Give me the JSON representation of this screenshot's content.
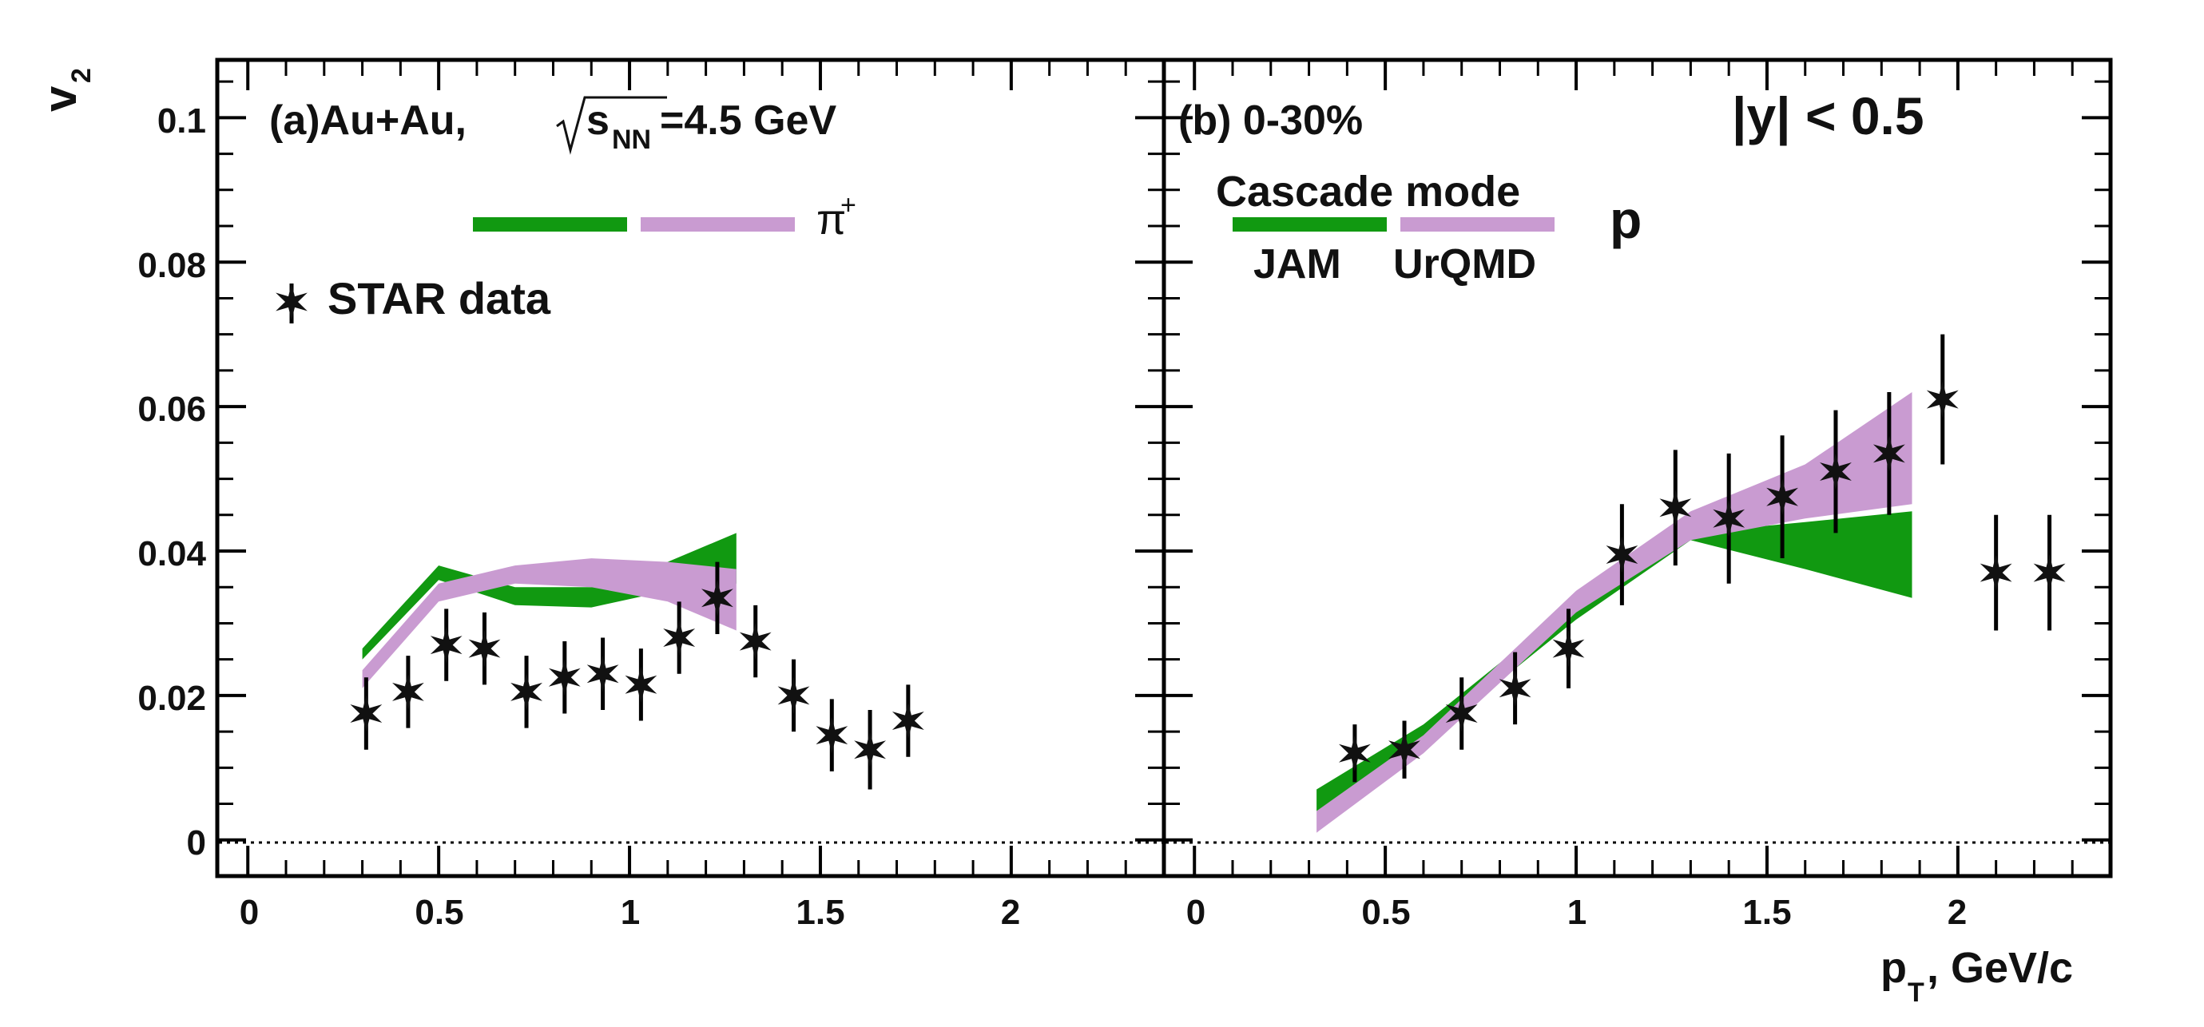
{
  "chart_data": [
    {
      "type": "scatter",
      "panel_label": "(a)Au+Au,",
      "energy_label": {
        "prefix": "s",
        "subscript": "NN",
        "suffix": "=4.5 GeV"
      },
      "particle_label": "π",
      "particle_charge": "+",
      "ylabel": "v",
      "ylabel_sub": "2",
      "xlim": [
        -0.08,
        2.4
      ],
      "ylim": [
        -0.005,
        0.108
      ],
      "x_ticks": [
        "0",
        "0.5",
        "1",
        "1.5",
        "2"
      ],
      "y_ticks": [
        "0",
        "0.02",
        "0.04",
        "0.06",
        "0.08",
        "0.1"
      ],
      "legend": {
        "marker_label": "STAR data"
      },
      "series": [
        {
          "name": "STAR data",
          "x": [
            0.31,
            0.42,
            0.52,
            0.62,
            0.73,
            0.83,
            0.93,
            1.03,
            1.13,
            1.23,
            1.33,
            1.43,
            1.53,
            1.63,
            1.73
          ],
          "y": [
            0.0175,
            0.0205,
            0.027,
            0.0265,
            0.0205,
            0.0225,
            0.023,
            0.0215,
            0.028,
            0.0335,
            0.0275,
            0.02,
            0.0145,
            0.0125,
            0.0165
          ],
          "err": [
            0.005,
            0.005,
            0.005,
            0.005,
            0.005,
            0.005,
            0.005,
            0.005,
            0.005,
            0.005,
            0.005,
            0.005,
            0.005,
            0.0055,
            0.005
          ]
        },
        {
          "name": "JAM",
          "color": "#119911",
          "x": [
            0.3,
            0.5,
            0.7,
            0.9,
            1.1,
            1.28
          ],
          "y_low": [
            0.025,
            0.036,
            0.0325,
            0.0322,
            0.0345,
            0.0355
          ],
          "y_high": [
            0.0265,
            0.038,
            0.035,
            0.035,
            0.0385,
            0.0425
          ]
        },
        {
          "name": "UrQMD",
          "color": "#c99bd1",
          "x": [
            0.3,
            0.5,
            0.7,
            0.9,
            1.1,
            1.28
          ],
          "y_low": [
            0.021,
            0.033,
            0.0355,
            0.035,
            0.033,
            0.029
          ],
          "y_high": [
            0.0235,
            0.0355,
            0.038,
            0.039,
            0.0385,
            0.0375
          ]
        }
      ]
    },
    {
      "type": "scatter",
      "panel_label": "(b) 0-30%",
      "rapidity_label": "|y| < 0.5",
      "particle_label": "p",
      "xlabel": "p",
      "xlabel_sub": "T",
      "xlabel_suffix": ", GeV/c",
      "xlim": [
        -0.08,
        2.4
      ],
      "ylim": [
        -0.005,
        0.108
      ],
      "x_ticks": [
        "0",
        "0.5",
        "1",
        "1.5",
        "2"
      ],
      "legend": {
        "title": "Cascade mode",
        "labels": [
          "JAM",
          "UrQMD"
        ]
      },
      "series": [
        {
          "name": "STAR data",
          "x": [
            0.42,
            0.55,
            0.7,
            0.84,
            0.98,
            1.12,
            1.26,
            1.4,
            1.54,
            1.68,
            1.82,
            1.96,
            2.1,
            2.24
          ],
          "y": [
            0.012,
            0.0125,
            0.0175,
            0.021,
            0.0265,
            0.0395,
            0.046,
            0.0445,
            0.0475,
            0.051,
            0.0535,
            0.061,
            0.037,
            0.037
          ],
          "err": [
            0.004,
            0.004,
            0.005,
            0.005,
            0.0055,
            0.007,
            0.008,
            0.009,
            0.0085,
            0.0085,
            0.0085,
            0.009,
            0.008,
            0.008
          ]
        },
        {
          "name": "JAM",
          "color": "#119911",
          "x": [
            0.32,
            0.6,
            1.0,
            1.3,
            1.6,
            1.88
          ],
          "y_low": [
            0.004,
            0.0135,
            0.0305,
            0.0415,
            0.0375,
            0.0335
          ],
          "y_high": [
            0.007,
            0.016,
            0.033,
            0.0425,
            0.044,
            0.0455
          ]
        },
        {
          "name": "UrQMD",
          "color": "#c99bd1",
          "x": [
            0.32,
            0.6,
            1.0,
            1.3,
            1.6,
            1.88
          ],
          "y_low": [
            0.001,
            0.012,
            0.0315,
            0.0415,
            0.0445,
            0.0465
          ],
          "y_high": [
            0.004,
            0.0145,
            0.0345,
            0.0455,
            0.052,
            0.062
          ]
        }
      ]
    }
  ]
}
